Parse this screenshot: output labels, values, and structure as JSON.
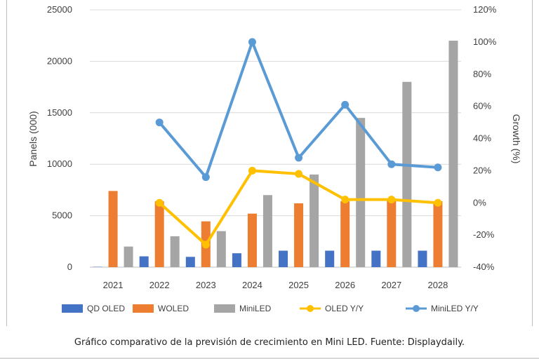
{
  "caption": "Gráfico comparativo de la previsión de crecimiento en Mini LED. Fuente: Displaydaily.",
  "chart_data": {
    "type": "bar",
    "title": "",
    "xlabel": "",
    "ylabel": "Panels (000)",
    "y2label": "Growth (%)",
    "categories": [
      "2021",
      "2022",
      "2023",
      "2024",
      "2025",
      "2026",
      "2027",
      "2028"
    ],
    "ylim": [
      0,
      25000
    ],
    "y2lim": [
      -40,
      120
    ],
    "y_ticks": [
      "0",
      "5000",
      "10000",
      "15000",
      "20000",
      "25000"
    ],
    "y2_ticks": [
      "-40%",
      "-20%",
      "0%",
      "20%",
      "40%",
      "60%",
      "80%",
      "100%",
      "120%"
    ],
    "grid": true,
    "legend_position": "bottom",
    "series": [
      {
        "name": "QD OLED",
        "kind": "bar",
        "axis": "left",
        "color": "#4472C4",
        "values": [
          30,
          1050,
          1000,
          1350,
          1600,
          1600,
          1600,
          1600
        ]
      },
      {
        "name": "WOLED",
        "kind": "bar",
        "axis": "left",
        "color": "#ED7D31",
        "values": [
          7400,
          6400,
          4450,
          5200,
          6200,
          6400,
          6500,
          6400
        ]
      },
      {
        "name": "MiniLED",
        "kind": "bar",
        "axis": "left",
        "color": "#A5A5A5",
        "values": [
          2000,
          3000,
          3500,
          7000,
          9000,
          14500,
          18000,
          22000
        ]
      },
      {
        "name": "OLED Y/Y",
        "kind": "line",
        "axis": "right",
        "color": "#FFC000",
        "values": [
          null,
          0,
          -26,
          20,
          18,
          2,
          2,
          0
        ]
      },
      {
        "name": "MiniLED Y/Y",
        "kind": "line",
        "axis": "right",
        "color": "#5B9BD5",
        "values": [
          null,
          50,
          16,
          100,
          28,
          61,
          24,
          22
        ]
      }
    ]
  }
}
